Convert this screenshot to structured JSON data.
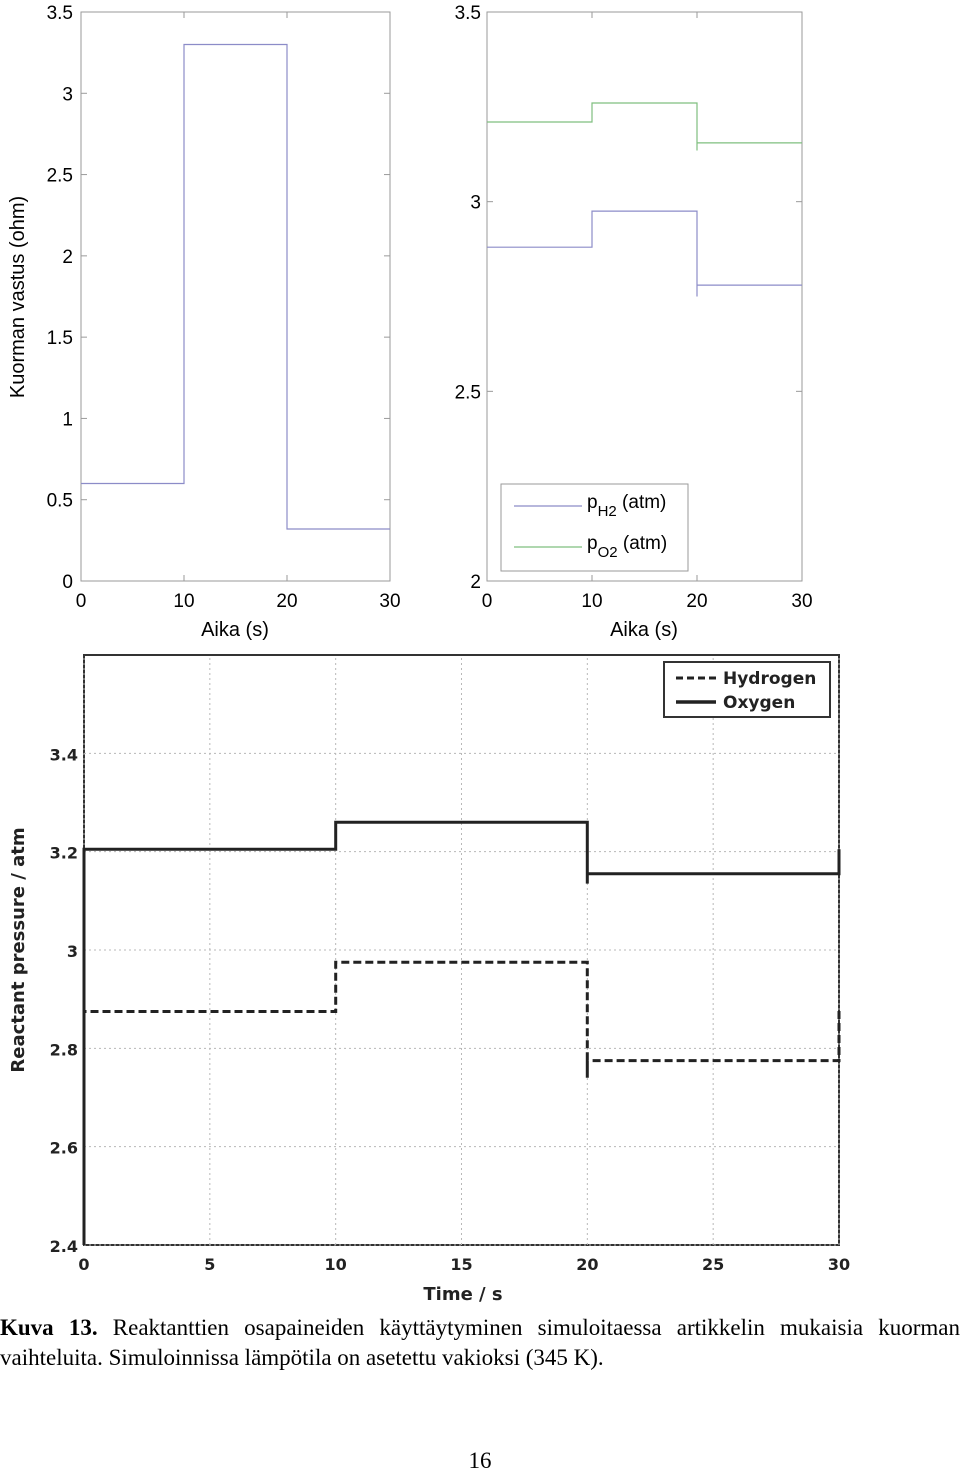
{
  "chart_data": [
    {
      "type": "line",
      "title": "",
      "xlabel": "Aika (s)",
      "ylabel": "Kuorman vastus (ohm)",
      "xlim": [
        0,
        30
      ],
      "ylim": [
        0,
        3.5
      ],
      "xticks": [
        0,
        10,
        20,
        30
      ],
      "xtick_labels": [
        "0",
        "10",
        "20",
        "30"
      ],
      "yticks": [
        0,
        0.5,
        1,
        1.5,
        2,
        2.5,
        3,
        3.5
      ],
      "ytick_labels": [
        "0",
        "0.5",
        "1",
        "1.5",
        "2",
        "2.5",
        "3",
        "3.5"
      ],
      "grid": false,
      "series": [
        {
          "color": "#8c8cc8",
          "x": [
            0,
            10,
            10,
            20,
            20,
            30
          ],
          "y": [
            0.6,
            0.6,
            3.3,
            3.3,
            0.32,
            0.32
          ]
        }
      ]
    },
    {
      "type": "line",
      "title": "",
      "xlabel": "Aika (s)",
      "ylabel": "",
      "xlim": [
        0,
        30
      ],
      "ylim": [
        2,
        3.5
      ],
      "xticks": [
        0,
        10,
        20,
        30
      ],
      "xtick_labels": [
        "0",
        "10",
        "20",
        "30"
      ],
      "yticks": [
        2,
        2.5,
        3,
        3.5
      ],
      "ytick_labels": [
        "2",
        "2.5",
        "3",
        "3.5"
      ],
      "grid": false,
      "legend": {
        "placement": "bottom-right",
        "entries": [
          {
            "main": "p",
            "sub": "H2",
            "unit": " (atm)"
          },
          {
            "main": "p",
            "sub": "O2",
            "unit": " (atm)"
          }
        ]
      },
      "series": [
        {
          "color": "#8c8cc8",
          "x": [
            0,
            10,
            10,
            20,
            20,
            20,
            30
          ],
          "y": [
            2.88,
            2.88,
            2.975,
            2.975,
            2.75,
            2.78,
            2.78
          ]
        },
        {
          "color": "#7fbf7f",
          "x": [
            0,
            10,
            10,
            20,
            20,
            20,
            30
          ],
          "y": [
            3.21,
            3.21,
            3.26,
            3.26,
            3.135,
            3.155,
            3.155
          ]
        }
      ]
    },
    {
      "type": "line",
      "title": "",
      "xlabel": "Time / s",
      "ylabel": "Reactant pressure / atm",
      "xlim": [
        0,
        30
      ],
      "ylim": [
        2.4,
        3.6
      ],
      "xticks": [
        0,
        5,
        10,
        15,
        20,
        25,
        30
      ],
      "xtick_labels": [
        "0",
        "5",
        "10",
        "15",
        "20",
        "25",
        "30"
      ],
      "yticks": [
        2.4,
        2.6,
        2.8,
        3.0,
        3.2,
        3.4
      ],
      "ytick_labels": [
        "2.4",
        "2.6",
        "2.8",
        "3",
        "3.2",
        "3.4"
      ],
      "grid": true,
      "legend": {
        "placement": "top-right",
        "entries": [
          "Hydrogen",
          "Oxygen"
        ]
      },
      "series": [
        {
          "name": "Hydrogen",
          "style": "dashed",
          "x": [
            0,
            0,
            0,
            10,
            10,
            20,
            20,
            20,
            30,
            30
          ],
          "y": [
            2.4,
            2.62,
            2.875,
            2.875,
            2.975,
            2.975,
            2.74,
            2.775,
            2.775,
            2.88
          ]
        },
        {
          "name": "Oxygen",
          "style": "solid",
          "x": [
            0,
            0,
            10,
            10,
            20,
            20,
            20,
            30,
            30
          ],
          "y": [
            2.4,
            3.205,
            3.205,
            3.26,
            3.26,
            3.135,
            3.155,
            3.155,
            3.205
          ]
        }
      ]
    }
  ],
  "caption": {
    "label": "Kuva 13.",
    "text": "Reaktanttien osapaineiden käyttäytyminen simuloitaessa artikkelin mukaisia kuorman vaihteluita. Simuloinnissa lämpötila on asetettu vakioksi (345 K)."
  },
  "page_number": "16"
}
